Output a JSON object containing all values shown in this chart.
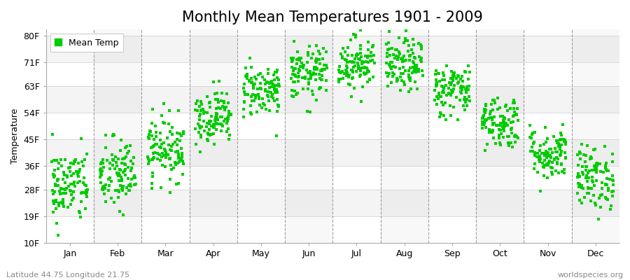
{
  "title": "Monthly Mean Temperatures 1901 - 2009",
  "ylabel": "Temperature",
  "xlabel_months": [
    "Jan",
    "Feb",
    "Mar",
    "Apr",
    "May",
    "Jun",
    "Jul",
    "Aug",
    "Sep",
    "Oct",
    "Nov",
    "Dec"
  ],
  "ytick_labels": [
    "10F",
    "19F",
    "28F",
    "36F",
    "45F",
    "54F",
    "63F",
    "71F",
    "80F"
  ],
  "ytick_values": [
    10,
    19,
    28,
    36,
    45,
    54,
    63,
    71,
    80
  ],
  "ylim": [
    10,
    82
  ],
  "dot_color": "#00CC00",
  "bg_color": "#FFFFFF",
  "plot_bg_color": "#FFFFFF",
  "legend_label": "Mean Temp",
  "footer_left": "Latitude 44.75 Longitude 21.75",
  "footer_right": "worldspecies.org",
  "title_fontsize": 15,
  "axis_label_fontsize": 9,
  "tick_fontsize": 9,
  "footer_fontsize": 8,
  "monthly_mean_celsius": [
    -1.5,
    0.5,
    5.5,
    11.5,
    16.5,
    19.5,
    21.5,
    21.0,
    16.5,
    10.5,
    4.5,
    0.0
  ],
  "monthly_std_celsius": [
    3.5,
    3.5,
    3.0,
    2.5,
    2.5,
    2.5,
    2.5,
    2.5,
    2.5,
    2.5,
    2.5,
    3.0
  ],
  "n_years": 109,
  "dot_size": 5,
  "hband_colors": [
    "#FFFFFF",
    "#EFEFEF"
  ],
  "col_band_colors": [
    "#FFFFFF",
    "#EBEBEB"
  ],
  "vline_color": "#888888",
  "hline_color": "#CCCCCC"
}
